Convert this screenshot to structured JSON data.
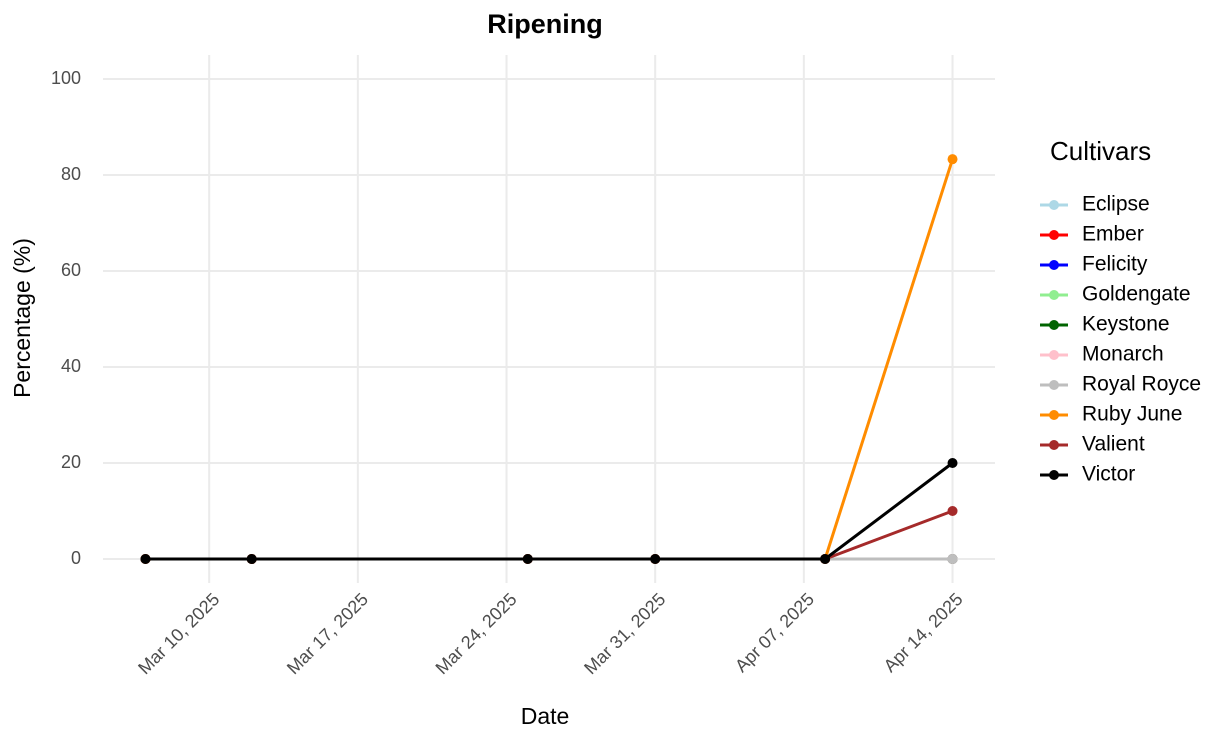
{
  "chart_data": {
    "type": "line",
    "title": "Ripening",
    "x_label": "Date",
    "y_label": "Percentage (%)",
    "x": [
      "2025-03-07",
      "2025-03-12",
      "2025-03-25",
      "2025-03-31",
      "2025-04-08",
      "2025-04-14"
    ],
    "series": [
      {
        "name": "Eclipse",
        "color": "#add8e6",
        "values": [
          0,
          0,
          0,
          0,
          0,
          0
        ]
      },
      {
        "name": "Ember",
        "color": "#ff0000",
        "values": [
          0,
          0,
          0,
          0,
          0,
          0
        ]
      },
      {
        "name": "Felicity",
        "color": "#0000ff",
        "values": [
          0,
          0,
          0,
          0,
          0,
          0
        ]
      },
      {
        "name": "Goldengate",
        "color": "#90ee90",
        "values": [
          0,
          0,
          0,
          0,
          0,
          0
        ]
      },
      {
        "name": "Keystone",
        "color": "#006400",
        "values": [
          0,
          0,
          0,
          0,
          0,
          0
        ]
      },
      {
        "name": "Monarch",
        "color": "#ffc0cb",
        "values": [
          0,
          0,
          0,
          0,
          0,
          0
        ]
      },
      {
        "name": "Royal Royce",
        "color": "#bebebe",
        "values": [
          0,
          0,
          0,
          0,
          0,
          0
        ]
      },
      {
        "name": "Ruby June",
        "color": "#ff8c00",
        "values": [
          0,
          0,
          0,
          0,
          0,
          83.3
        ]
      },
      {
        "name": "Valient",
        "color": "#a52a2a",
        "values": [
          0,
          0,
          0,
          0,
          0,
          10
        ]
      },
      {
        "name": "Victor",
        "color": "#000000",
        "values": [
          0,
          0,
          0,
          0,
          0,
          20
        ]
      }
    ],
    "legend_title": "Cultivars",
    "legend": "right",
    "xlim": [
      "2025-03-05",
      "2025-04-16"
    ],
    "xticks": [
      {
        "value": "2025-03-10",
        "label": "Mar 10, 2025"
      },
      {
        "value": "2025-03-17",
        "label": "Mar 17, 2025"
      },
      {
        "value": "2025-03-24",
        "label": "Mar 24, 2025"
      },
      {
        "value": "2025-03-31",
        "label": "Mar 31, 2025"
      },
      {
        "value": "2025-04-07",
        "label": "Apr 07, 2025"
      },
      {
        "value": "2025-04-14",
        "label": "Apr 14, 2025"
      }
    ],
    "ylim": [
      -5,
      105
    ],
    "yticks": [
      0,
      20,
      40,
      60,
      80,
      100
    ],
    "grid": true
  }
}
